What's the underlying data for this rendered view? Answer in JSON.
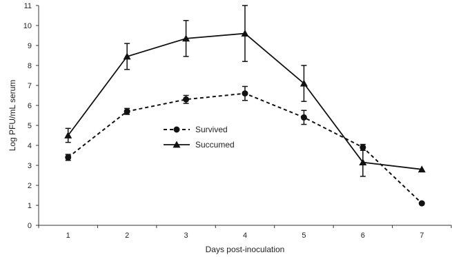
{
  "chart_data": {
    "type": "line",
    "xlabel": "Days post-inoculation",
    "ylabel": "Log PFU/mL serum",
    "ylim": [
      0,
      11
    ],
    "xlim": [
      0.5,
      7.5
    ],
    "x_ticks": [
      1,
      2,
      3,
      4,
      5,
      6,
      7
    ],
    "y_ticks": [
      0,
      1,
      2,
      3,
      4,
      5,
      6,
      7,
      8,
      9,
      10,
      11
    ],
    "grid": false,
    "legend_position": "center",
    "series": [
      {
        "name": "Survived",
        "marker": "circle",
        "line_style": "dashed",
        "color": "#111111",
        "x": [
          1,
          2,
          3,
          4,
          5,
          6,
          7
        ],
        "y": [
          3.4,
          5.7,
          6.3,
          6.6,
          5.4,
          3.9,
          1.1
        ],
        "error": [
          0.15,
          0.15,
          0.2,
          0.35,
          0.35,
          0.15,
          null
        ]
      },
      {
        "name": "Succumed",
        "marker": "triangle",
        "line_style": "solid",
        "color": "#111111",
        "x": [
          1,
          2,
          3,
          4,
          5,
          6,
          7
        ],
        "y": [
          4.5,
          8.45,
          9.35,
          9.6,
          7.1,
          3.15,
          2.8
        ],
        "error": [
          0.35,
          0.65,
          0.9,
          1.4,
          0.9,
          0.7,
          null
        ]
      }
    ]
  }
}
